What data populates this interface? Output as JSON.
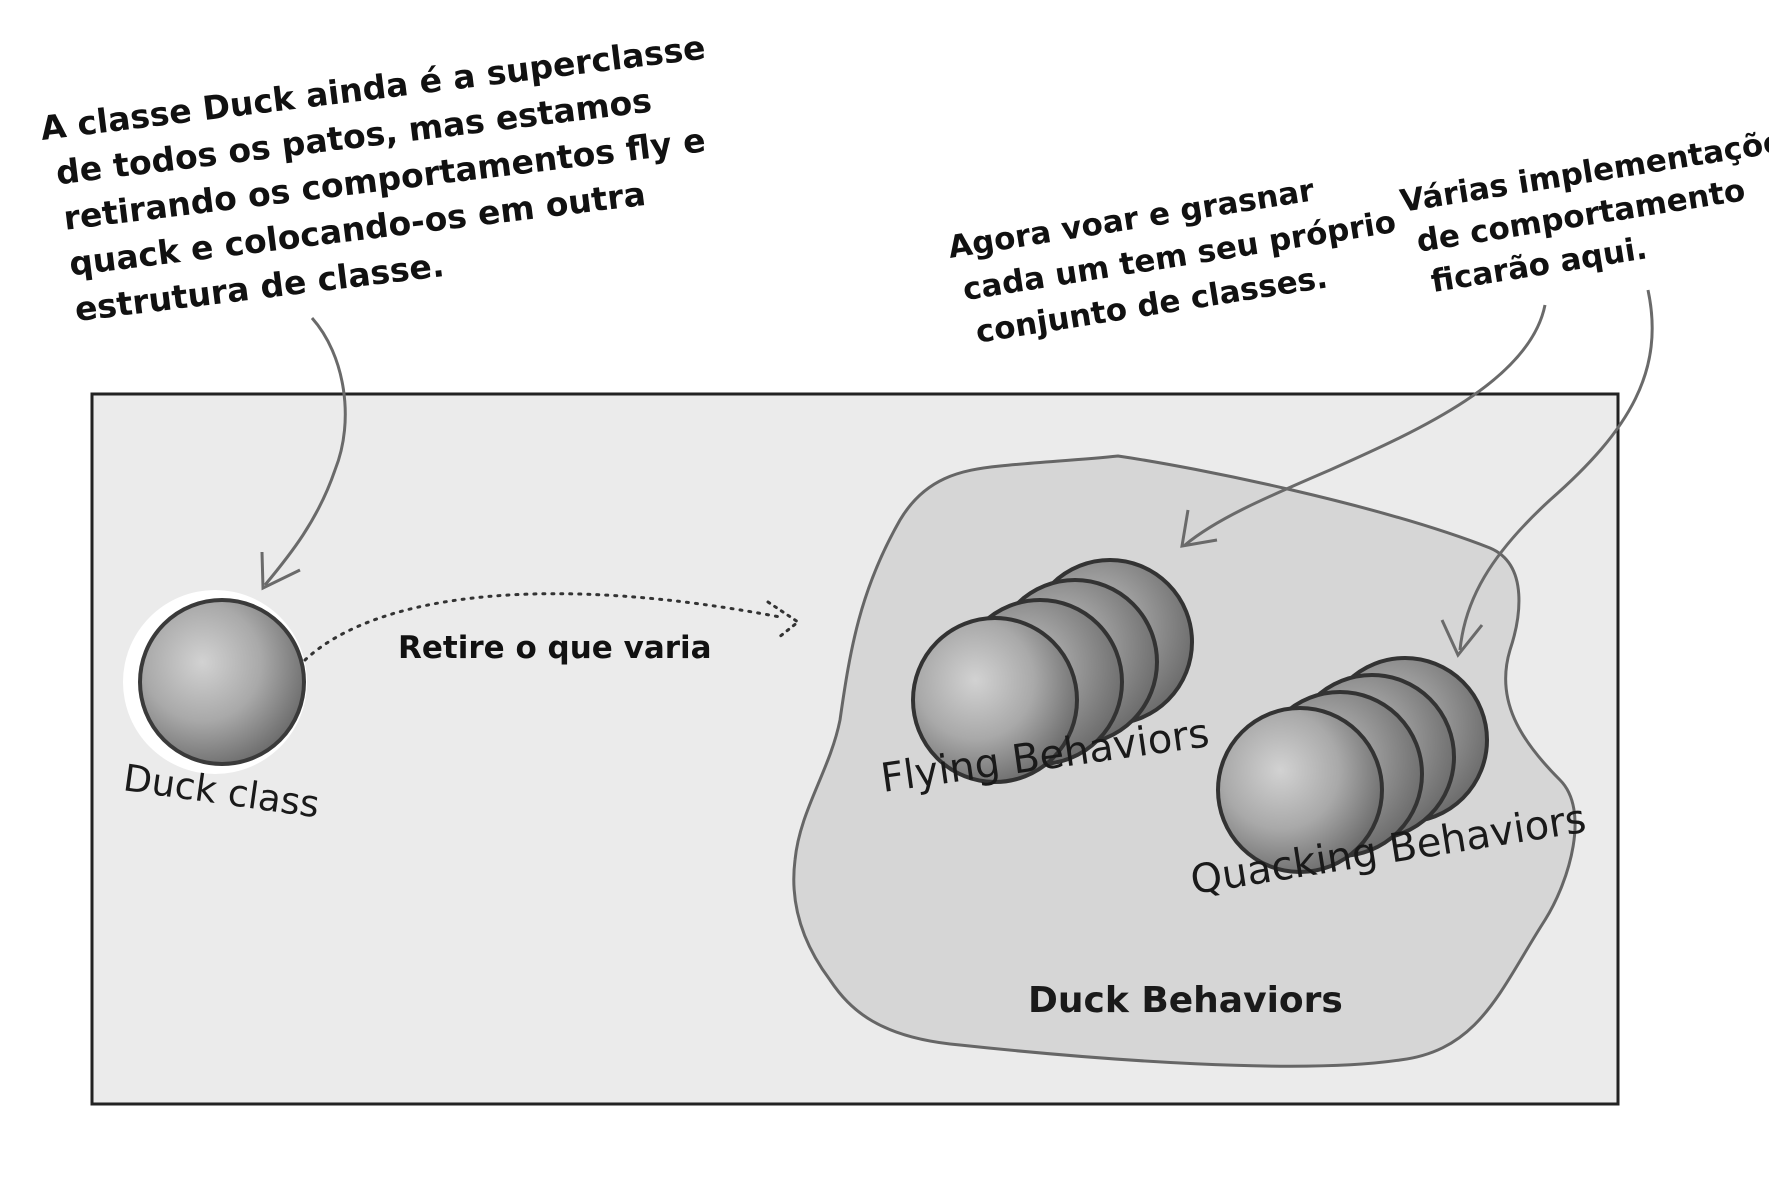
{
  "annotations": {
    "duck_superclass": [
      "A classe Duck ainda é a superclasse",
      "de todos os patos, mas estamos",
      "retirando os comportamentos fly e",
      "quack e colocando-os em outra",
      "estrutura de classe."
    ],
    "own_classes": [
      "Agora voar e grasnar",
      "cada um tem seu próprio",
      "conjunto de classes."
    ],
    "implementations": [
      "Várias implementações",
      "de comportamento",
      "ficarão aqui."
    ]
  },
  "diagram": {
    "duck_class_label": "Duck class",
    "extract_label": "Retire o que varia",
    "flying_label": "Flying Behaviors",
    "quacking_label": "Quacking Behaviors",
    "group_label": "Duck Behaviors"
  }
}
